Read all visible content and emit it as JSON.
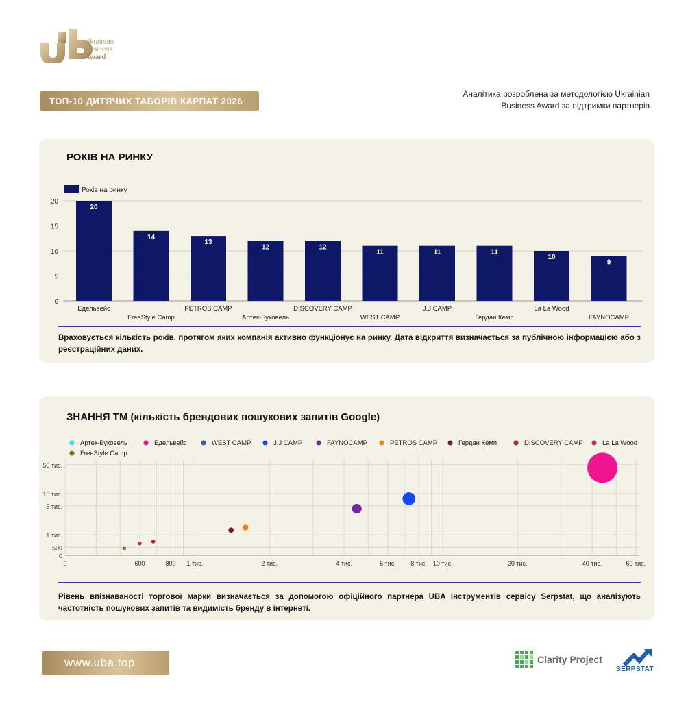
{
  "header": {
    "logo_line1": "Ukrainian",
    "logo_line2": "Business",
    "logo_line3": "Award",
    "title_badge": "ТОП-10 ДИТЯЧИХ ТАБОРІВ КАРПАТ 2026",
    "methodology": "Аналітика розроблена за методологією Ukrainian Business Award за підтримки партнерів"
  },
  "card_years": {
    "title": "РОКІВ НА РИНКУ",
    "note": "Враховується кількість років, протягом яких компанія активно функціонує на ринку. Дата відкриття визначається за публічною інформацією або з реєстраційних даних."
  },
  "card_brand": {
    "title": "ЗНАННЯ ТМ (кількість брендових пошукових запитів Google)",
    "note": "Рівень впізнаваності торгової марки визначається за допомогою офіційного партнера UBA інструментів сервісу Serpstat, що аналізують частотність пошукових запитів та видимість бренду в інтернеті."
  },
  "chart_data": [
    {
      "type": "bar",
      "legend": [
        "Років на ринку"
      ],
      "legend_position": "top-left",
      "categories": [
        "Едельвейс",
        "FreeStyle Camp",
        "PETROS CAMP",
        "Артек-Буковель",
        "DISCOVERY CAMP",
        "WEST CAMP",
        "J.J CAMP",
        "Гердан Кемп",
        "La La Wood",
        "FAYNOCAMP"
      ],
      "series": [
        {
          "name": "Років на ринку",
          "values": [
            20,
            14,
            13,
            12,
            12,
            11,
            11,
            11,
            10,
            9
          ],
          "color": "#0e1866"
        }
      ],
      "ylim": [
        0,
        20
      ],
      "y_ticks": [
        "0",
        "5",
        "10",
        "15",
        "20"
      ],
      "grid": true
    },
    {
      "type": "scatter",
      "x_scale": "log",
      "y_scale": "log",
      "legend_position": "top-left",
      "x_ticks": [
        "0",
        "600",
        "800",
        "1 тис.",
        "2 тис.",
        "4 тис.",
        "6 тис.",
        "8 тис.",
        "10 тис.",
        "20 тис.",
        "40 тис.",
        "60 тис."
      ],
      "y_ticks": [
        "0",
        "500",
        "1 тис.",
        "5 тис.",
        "10 тис.",
        "50 тис."
      ],
      "grid": true,
      "series": [
        {
          "name": "Артек-Буковель",
          "color": "#37e0e6",
          "points": []
        },
        {
          "name": "Едельвейс",
          "color": "#f0158f",
          "points": [
            {
              "x": 44000,
              "y": 42000
            }
          ]
        },
        {
          "name": "WEST CAMP",
          "color": "#3a56c8",
          "points": []
        },
        {
          "name": "J.J CAMP",
          "color": "#1846f0",
          "points": [
            {
              "x": 7300,
              "y": 7500
            }
          ]
        },
        {
          "name": "FAYNOCAMP",
          "color": "#7426a8",
          "points": [
            {
              "x": 4500,
              "y": 4300
            }
          ]
        },
        {
          "name": "PETROS CAMP",
          "color": "#f07f1a",
          "points": [
            {
              "x": 1600,
              "y": 1500
            }
          ]
        },
        {
          "name": "Гердан Кемп",
          "color": "#7d1040",
          "points": [
            {
              "x": 1400,
              "y": 1300
            }
          ]
        },
        {
          "name": "DISCOVERY CAMP",
          "color": "#b0262d",
          "points": [
            {
              "x": 680,
              "y": 690
            }
          ]
        },
        {
          "name": "La La Wood",
          "color": "#c42d58",
          "points": [
            {
              "x": 600,
              "y": 620
            }
          ]
        },
        {
          "name": "FreeStyle Camp",
          "color": "#6d7b22",
          "points": [
            {
              "x": 520,
              "y": 470
            }
          ]
        }
      ]
    }
  ],
  "footer": {
    "url": "www.uba.top",
    "clarity": "Clarity Project",
    "serpstat": "SERPSTAT"
  }
}
